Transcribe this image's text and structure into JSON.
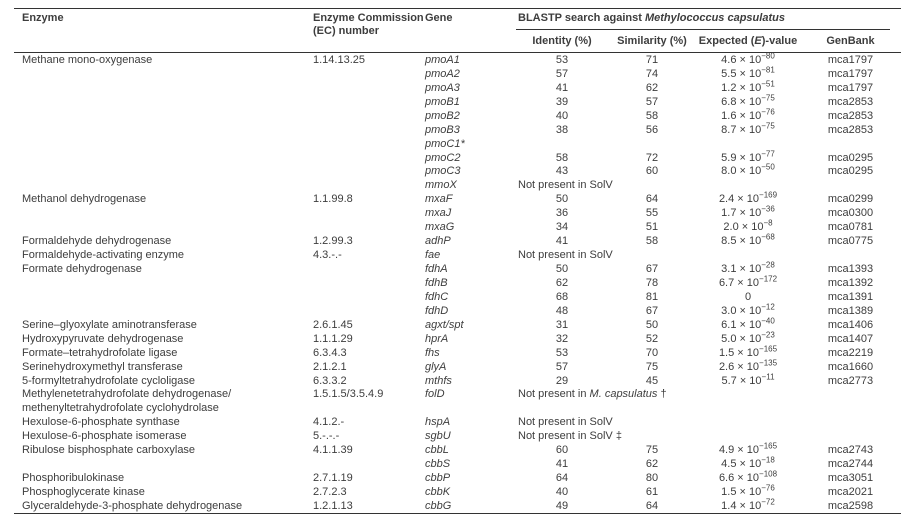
{
  "table": {
    "header": {
      "enzyme": "Enzyme",
      "ec_line1": "Enzyme Commission",
      "ec_line2": "(EC) number",
      "gene": "Gene",
      "blastp_prefix": "BLASTP search against ",
      "blastp_species": "Methylococcus capsulatus",
      "identity": "Identity (%)",
      "similarity": "Similarity (%)",
      "expected_pre": "Expected (",
      "expected_e": "E",
      "expected_post": ")-value",
      "genbank": "GenBank"
    },
    "rows": [
      {
        "enzyme": "Methane mono-oxygenase",
        "ec": "1.14.13.25",
        "gene": "pmoA1",
        "identity": "53",
        "similarity": "71",
        "evalue": "4.6e-80",
        "genbank": "mca1797"
      },
      {
        "gene": "pmoA2",
        "identity": "57",
        "similarity": "74",
        "evalue": "5.5e-81",
        "genbank": "mca1797"
      },
      {
        "gene": "pmoA3",
        "identity": "41",
        "similarity": "62",
        "evalue": "1.2e-51",
        "genbank": "mca1797"
      },
      {
        "gene": "pmoB1",
        "identity": "39",
        "similarity": "57",
        "evalue": "6.8e-75",
        "genbank": "mca2853"
      },
      {
        "gene": "pmoB2",
        "identity": "40",
        "similarity": "58",
        "evalue": "1.6e-76",
        "genbank": "mca2853"
      },
      {
        "gene": "pmoB3",
        "identity": "38",
        "similarity": "56",
        "evalue": "8.7e-75",
        "genbank": "mca2853"
      },
      {
        "gene": "pmoC1*"
      },
      {
        "gene": "pmoC2",
        "identity": "58",
        "similarity": "72",
        "evalue": "5.9e-77",
        "genbank": "mca0295"
      },
      {
        "gene": "pmoC3",
        "identity": "43",
        "similarity": "60",
        "evalue": "8.0e-50",
        "genbank": "mca0295"
      },
      {
        "gene": "mmoX",
        "note": "Not present in SolV"
      },
      {
        "enzyme": "Methanol dehydrogenase",
        "ec": "1.1.99.8",
        "gene": "mxaF",
        "identity": "50",
        "similarity": "64",
        "evalue": "2.4e-169",
        "genbank": "mca0299"
      },
      {
        "gene": "mxaJ",
        "identity": "36",
        "similarity": "55",
        "evalue": "1.7e-36",
        "genbank": "mca0300"
      },
      {
        "gene": "mxaG",
        "identity": "34",
        "similarity": "51",
        "evalue": "2.0e-8",
        "genbank": "mca0781"
      },
      {
        "enzyme": "Formaldehyde dehydrogenase",
        "ec": "1.2.99.3",
        "gene": "adhP",
        "identity": "41",
        "similarity": "58",
        "evalue": "8.5e-68",
        "genbank": "mca0775"
      },
      {
        "enzyme": "Formaldehyde-activating enzyme",
        "ec": "4.3.-.-",
        "gene": "fae",
        "note": "Not present in SolV"
      },
      {
        "enzyme": "Formate dehydrogenase",
        "gene": "fdhA",
        "identity": "50",
        "similarity": "67",
        "evalue": "3.1e-28",
        "genbank": "mca1393"
      },
      {
        "gene": "fdhB",
        "identity": "62",
        "similarity": "78",
        "evalue": "6.7e-172",
        "genbank": "mca1392"
      },
      {
        "gene": "fdhC",
        "identity": "68",
        "similarity": "81",
        "evalue": "0",
        "genbank": "mca1391"
      },
      {
        "gene": "fdhD",
        "identity": "48",
        "similarity": "67",
        "evalue": "3.0e-12",
        "genbank": "mca1389"
      },
      {
        "enzyme": "Serine–glyoxylate aminotransferase",
        "ec": "2.6.1.45",
        "gene": "agxt/spt",
        "identity": "31",
        "similarity": "50",
        "evalue": "6.1e-40",
        "genbank": "mca1406"
      },
      {
        "enzyme": "Hydroxypyruvate dehydrogenase",
        "ec": "1.1.1.29",
        "gene": "hprA",
        "identity": "32",
        "similarity": "52",
        "evalue": "5.0e-23",
        "genbank": "mca1407"
      },
      {
        "enzyme": "Formate–tetrahydrofolate ligase",
        "ec": "6.3.4.3",
        "gene": "fhs",
        "identity": "53",
        "similarity": "70",
        "evalue": "1.5e-165",
        "genbank": "mca2219"
      },
      {
        "enzyme": "Serinehydroxymethyl transferase",
        "ec": "2.1.2.1",
        "gene": "glyA",
        "identity": "57",
        "similarity": "75",
        "evalue": "2.6e-135",
        "genbank": "mca1660"
      },
      {
        "enzyme": "5-formyltetrahydrofolate cycloligase",
        "ec": "6.3.3.2",
        "gene": "mthfs",
        "identity": "29",
        "similarity": "45",
        "evalue": "5.7e-11",
        "genbank": "mca2773"
      },
      {
        "enzyme": "Methylenetetrahydrofolate dehydrogenase/",
        "ec": "1.5.1.5/3.5.4.9",
        "gene": "folD",
        "note": "Not present in ",
        "note_italic": "M. capsulatus",
        "note_suffix": " †"
      },
      {
        "enzyme": "methenyltetrahydrofolate cyclohydrolase"
      },
      {
        "enzyme": "Hexulose-6-phosphate synthase",
        "ec": "4.1.2.-",
        "gene": "hspA",
        "note": "Not present in SolV"
      },
      {
        "enzyme": "Hexulose-6-phosphate isomerase",
        "ec": "5.-.-.-",
        "gene": "sgbU",
        "note": "Not present in SolV ‡"
      },
      {
        "enzyme": "Ribulose bisphosphate carboxylase",
        "ec": "4.1.1.39",
        "gene": "cbbL",
        "identity": "60",
        "similarity": "75",
        "evalue": "4.9e-165",
        "genbank": "mca2743"
      },
      {
        "gene": "cbbS",
        "identity": "41",
        "similarity": "62",
        "evalue": "4.5e-18",
        "genbank": "mca2744"
      },
      {
        "enzyme": "Phosphoribulokinase",
        "ec": "2.7.1.19",
        "gene": "cbbP",
        "identity": "64",
        "similarity": "80",
        "evalue": "6.6e-108",
        "genbank": "mca3051"
      },
      {
        "enzyme": "Phosphoglycerate kinase",
        "ec": "2.7.2.3",
        "gene": "cbbK",
        "identity": "40",
        "similarity": "61",
        "evalue": "1.5e-76",
        "genbank": "mca2021"
      },
      {
        "enzyme": "Glyceraldehyde-3-phosphate dehydrogenase",
        "ec": "1.2.1.13",
        "gene": "cbbG",
        "identity": "49",
        "similarity": "64",
        "evalue": "1.4e-72",
        "genbank": "mca2598"
      }
    ]
  }
}
